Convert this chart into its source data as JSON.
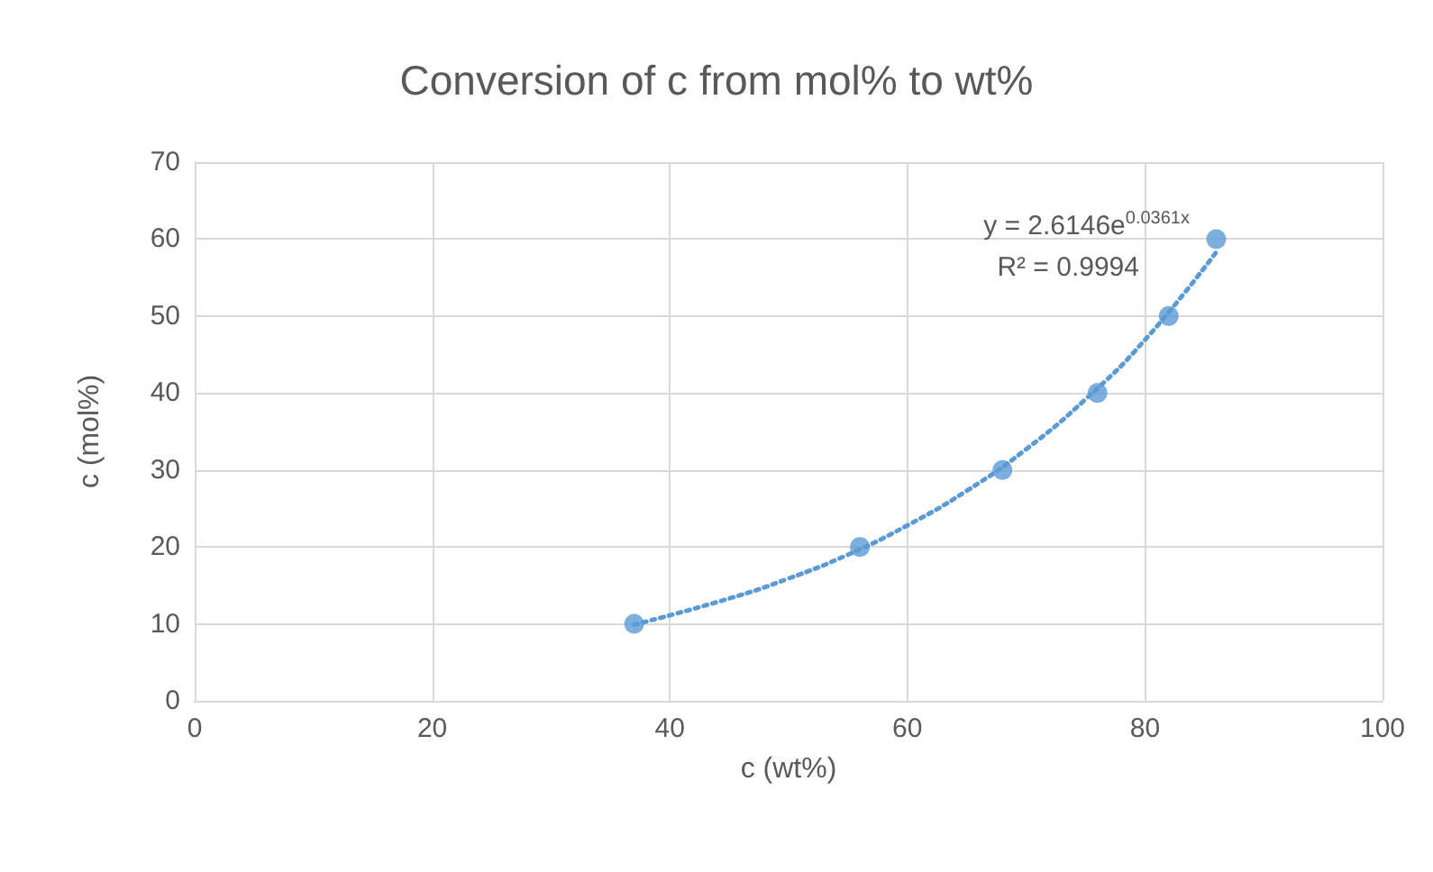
{
  "chart_data": {
    "type": "scatter",
    "title": "Conversion of c from mol% to wt%",
    "xlabel": "c (wt%)",
    "ylabel": "c (mol%)",
    "x": [
      37,
      56,
      68,
      76,
      82,
      86
    ],
    "series": [
      {
        "color": "#5b9bd5",
        "marker": "circle",
        "values": [
          10,
          20,
          30,
          40,
          50,
          60
        ]
      },
      {
        "type": "line",
        "color": "#5b9bd5",
        "marker": "none",
        "line_style": "dotted",
        "x": [
          37,
          45,
          50,
          55,
          60,
          65,
          70,
          75,
          80,
          86
        ],
        "values": [
          9.9,
          13.3,
          15.9,
          19.0,
          22.8,
          27.3,
          32.7,
          39.2,
          46.9,
          58.3
        ]
      }
    ],
    "annotations": [
      "y = 2.6146e$^{0.0361x}$",
      "R² = 0.9994"
    ],
    "xlim": [
      0,
      100
    ],
    "xticks": [
      0,
      20,
      40,
      60,
      80,
      100
    ],
    "ylim": [
      0,
      70
    ],
    "yticks": [
      0,
      10,
      20,
      30,
      40,
      50,
      60,
      70
    ],
    "grid": true
  }
}
